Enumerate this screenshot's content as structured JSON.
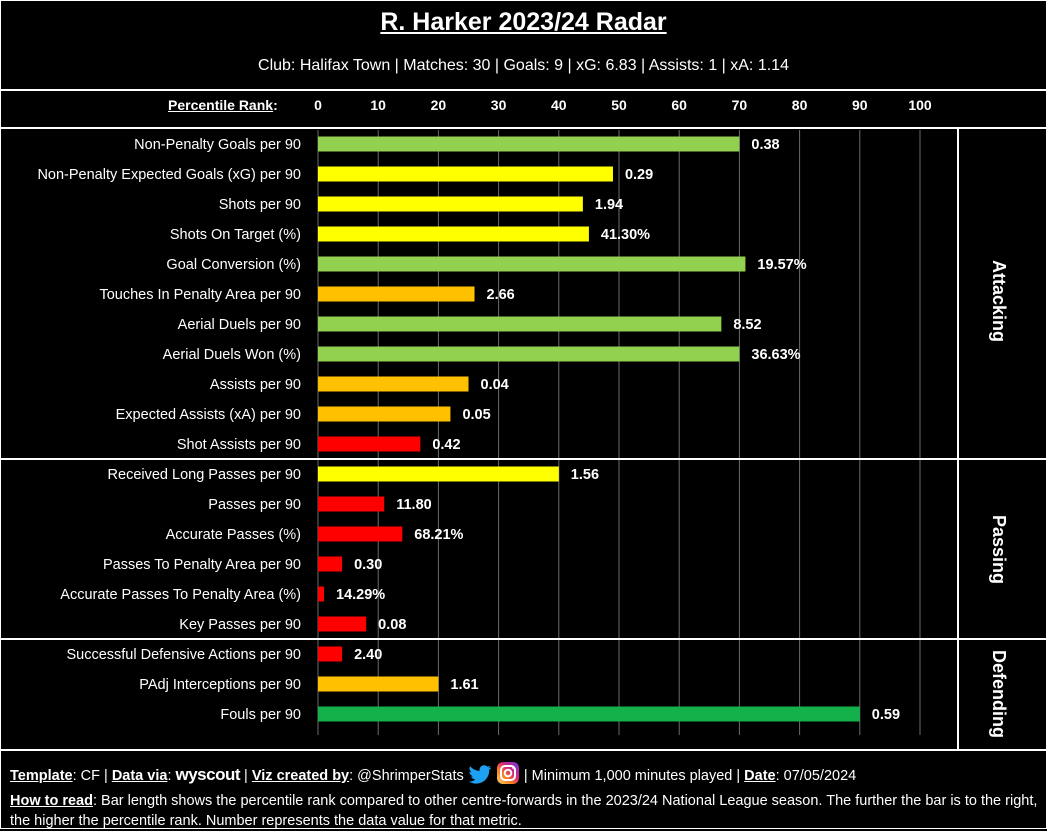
{
  "header": {
    "title": "R. Harker 2023/24 Radar",
    "subtitle": "Club: Halifax Town | Matches: 30 | Goals: 9 | xG: 6.83 | Assists: 1 | xA: 1.14"
  },
  "axis": {
    "label": "Percentile Rank",
    "ticks": [
      "0",
      "10",
      "20",
      "30",
      "40",
      "50",
      "60",
      "70",
      "80",
      "90",
      "100"
    ]
  },
  "colors": {
    "dark_green": "#14B14B",
    "green": "#92D050",
    "yellow": "#FFFF00",
    "orange": "#FFC000",
    "red": "#FF0000",
    "grid": "#6b6b6b"
  },
  "chart_data": {
    "type": "bar",
    "orientation": "horizontal",
    "xlim": [
      0,
      100
    ],
    "xlabel": "Percentile Rank",
    "groups": [
      {
        "name": "Attacking",
        "count": 11
      },
      {
        "name": "Passing",
        "count": 6
      },
      {
        "name": "Defending",
        "count": 3
      }
    ],
    "categories": [
      "Non-Penalty Goals per 90",
      "Non-Penalty Expected Goals (xG) per 90",
      "Shots per 90",
      "Shots On Target (%)",
      "Goal Conversion (%)",
      "Touches In Penalty Area per 90",
      "Aerial Duels per 90",
      "Aerial Duels Won (%)",
      "Assists per 90",
      "Expected Assists (xA) per 90",
      "Shot Assists per 90",
      "Received Long Passes per 90",
      "Passes per 90",
      "Accurate Passes (%)",
      "Passes To Penalty Area per 90",
      "Accurate Passes To Penalty Area (%)",
      "Key Passes per 90",
      "Successful Defensive Actions per 90",
      "PAdj Interceptions per 90",
      "Fouls per 90"
    ],
    "percentiles": [
      70,
      49,
      44,
      45,
      71,
      26,
      67,
      70,
      25,
      22,
      17,
      40,
      11,
      14,
      4,
      1,
      8,
      4,
      20,
      90
    ],
    "value_labels": [
      "0.38",
      "0.29",
      "1.94",
      "41.30%",
      "19.57%",
      "2.66",
      "8.52",
      "36.63%",
      "0.04",
      "0.05",
      "0.42",
      "1.56",
      "11.80",
      "68.21%",
      "0.30",
      "14.29%",
      "0.08",
      "2.40",
      "1.61",
      "0.59"
    ],
    "bar_colors": [
      "#92D050",
      "#FFFF00",
      "#FFFF00",
      "#FFFF00",
      "#92D050",
      "#FFC000",
      "#92D050",
      "#92D050",
      "#FFC000",
      "#FFC000",
      "#FF0000",
      "#FFFF00",
      "#FF0000",
      "#FF0000",
      "#FF0000",
      "#FF0000",
      "#FF0000",
      "#FF0000",
      "#FFC000",
      "#14B14B"
    ]
  },
  "footer": {
    "template_label": "Template",
    "template_value": ": CF | ",
    "data_via_label": "Data via",
    "data_via_sep": ": ",
    "data_source": "wyscout",
    "viz_label": "Viz created by",
    "viz_value": ": @ShrimperStats",
    "minimum": " | Minimum 1,000 minutes played | ",
    "date_label": "Date",
    "date_value": ": 07/05/2024",
    "how_label": "How to read",
    "how_text": ": Bar length shows the percentile rank compared to other centre-forwards in the 2023/24 National League season. The further the bar is to the right, the higher the percentile rank. Number represents the data value for that metric."
  }
}
